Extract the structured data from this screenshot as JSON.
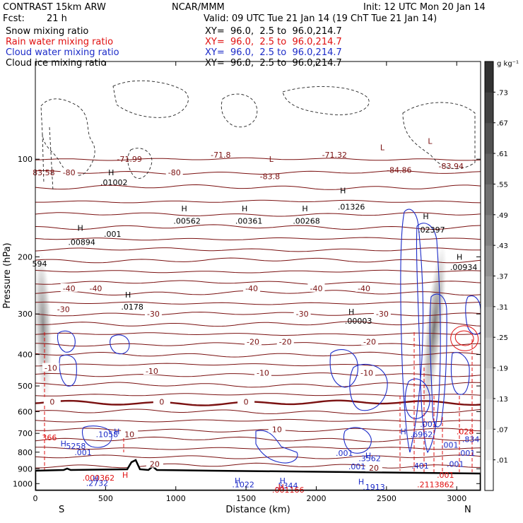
{
  "header": {
    "model": "CONTRAST 15km ARW",
    "org": "NCAR/MMM",
    "init": "Init: 12 UTC Mon 20 Jan 14",
    "fcst_label": "Fcst:",
    "fcst_value": "21 h",
    "valid": "Valid: 09 UTC Tue 21 Jan 14 (19 ChT Tue 21 Jan 14)",
    "fields": [
      {
        "name": "Snow mixing ratio",
        "xy": "XY=  96.0,  2.5 to  96.0,214.7",
        "color": "#000000"
      },
      {
        "name": "Rain water mixing ratio",
        "xy": "XY=  96.0,  2.5 to  96.0,214.7",
        "color": "#e01010"
      },
      {
        "name": "Cloud water mixing ratio",
        "xy": "XY=  96.0,  2.5 to  96.0,214.7",
        "color": "#1c2bc8"
      },
      {
        "name": "Cloud ice mixing ratio",
        "xy": "XY=  96.0,  2.5 to  96.0,214.7",
        "color": "#000000"
      }
    ]
  },
  "chart_data": {
    "type": "heatmap",
    "xlabel": "Distance (km)",
    "ylabel": "Pressure (hPa)",
    "xlim": [
      0,
      3170
    ],
    "ylim": [
      1050,
      50
    ],
    "y_scale": "log",
    "x_ticks": [
      0,
      500,
      1000,
      1500,
      2000,
      2500,
      3000
    ],
    "y_ticks": [
      100,
      200,
      300,
      400,
      500,
      600,
      700,
      800,
      900,
      1000
    ],
    "x_end_labels": {
      "left": "S",
      "right": "N"
    },
    "colorbar": {
      "unit": "g kg⁻¹",
      "ticks": [
        ".01",
        ".07",
        ".13",
        ".19",
        ".25",
        ".31",
        ".37",
        ".43",
        ".49",
        ".55",
        ".61",
        ".67",
        ".73"
      ]
    },
    "snow_fill": [
      {
        "x": 40,
        "top": 190,
        "bottom": 560,
        "peak": 0.45
      },
      {
        "x": 2870,
        "top": 180,
        "bottom": 600,
        "peak": 0.6
      }
    ],
    "temperature_labels": [
      {
        "x": 240,
        "p": 110,
        "text": "-80"
      },
      {
        "x": 990,
        "p": 110,
        "text": "-80"
      },
      {
        "x": 430,
        "p": 250,
        "text": "-40"
      },
      {
        "x": 240,
        "p": 250,
        "text": "-40"
      },
      {
        "x": 1540,
        "p": 250,
        "text": "-40"
      },
      {
        "x": 2000,
        "p": 250,
        "text": "-40"
      },
      {
        "x": 2340,
        "p": 250,
        "text": "-40"
      },
      {
        "x": 200,
        "p": 290,
        "text": "-30"
      },
      {
        "x": 840,
        "p": 300,
        "text": "-30"
      },
      {
        "x": 1900,
        "p": 300,
        "text": "-30"
      },
      {
        "x": 2470,
        "p": 300,
        "text": "-30"
      },
      {
        "x": 1550,
        "p": 365,
        "text": "-20"
      },
      {
        "x": 1780,
        "p": 365,
        "text": "-20"
      },
      {
        "x": 2380,
        "p": 365,
        "text": "-20"
      },
      {
        "x": 110,
        "p": 440,
        "text": "-10"
      },
      {
        "x": 830,
        "p": 450,
        "text": "-10"
      },
      {
        "x": 1620,
        "p": 455,
        "text": "-10"
      },
      {
        "x": 2360,
        "p": 455,
        "text": "-10"
      },
      {
        "x": 120,
        "p": 560,
        "text": "0"
      },
      {
        "x": 900,
        "p": 560,
        "text": "0"
      },
      {
        "x": 1500,
        "p": 560,
        "text": "0"
      },
      {
        "x": 670,
        "p": 705,
        "text": "10"
      },
      {
        "x": 1720,
        "p": 680,
        "text": "10"
      },
      {
        "x": 850,
        "p": 870,
        "text": "20"
      },
      {
        "x": 2410,
        "p": 895,
        "text": "20"
      }
    ],
    "extrema_labels": [
      {
        "x": 60,
        "p": 110,
        "text": "83.58",
        "color": "temp"
      },
      {
        "x": 670,
        "p": 100,
        "text": "-71.99",
        "color": "temp"
      },
      {
        "x": 1320,
        "p": 97,
        "text": "-71.8",
        "color": "temp"
      },
      {
        "x": 1670,
        "p": 113,
        "text": "-83.8",
        "color": "temp"
      },
      {
        "x": 2130,
        "p": 97,
        "text": "-71.32",
        "color": "temp"
      },
      {
        "x": 2590,
        "p": 108,
        "text": "-84.86",
        "color": "temp"
      },
      {
        "x": 2960,
        "p": 105,
        "text": "-83.94",
        "color": "temp"
      },
      {
        "x": 560,
        "p": 118,
        "text": ".01002",
        "color": "black"
      },
      {
        "x": 1080,
        "p": 155,
        "text": ".00562",
        "color": "black"
      },
      {
        "x": 1520,
        "p": 155,
        "text": ".00361",
        "color": "black"
      },
      {
        "x": 1930,
        "p": 155,
        "text": ".00268",
        "color": "black"
      },
      {
        "x": 2250,
        "p": 140,
        "text": ".01326",
        "color": "black"
      },
      {
        "x": 2820,
        "p": 165,
        "text": ".02397",
        "color": "black"
      },
      {
        "x": 330,
        "p": 180,
        "text": ".00894",
        "color": "black"
      },
      {
        "x": 550,
        "p": 170,
        "text": ".001",
        "color": "black"
      },
      {
        "x": 3050,
        "p": 215,
        "text": ".00934",
        "color": "black"
      },
      {
        "x": 30,
        "p": 210,
        "text": "594",
        "color": "black"
      },
      {
        "x": 690,
        "p": 285,
        "text": ".0178",
        "color": "black"
      },
      {
        "x": 2300,
        "p": 315,
        "text": ".00003",
        "color": "black"
      },
      {
        "x": 100,
        "p": 720,
        "text": "366",
        "color": "red"
      },
      {
        "x": 510,
        "p": 705,
        "text": ".1058",
        "color": "blue"
      },
      {
        "x": 280,
        "p": 765,
        "text": ".5258",
        "color": "blue"
      },
      {
        "x": 340,
        "p": 800,
        "text": ".001",
        "color": "blue"
      },
      {
        "x": 2750,
        "p": 705,
        "text": ".6962",
        "color": "blue"
      },
      {
        "x": 2380,
        "p": 835,
        "text": ".3562",
        "color": "blue"
      },
      {
        "x": 2200,
        "p": 805,
        "text": ".001",
        "color": "blue"
      },
      {
        "x": 2290,
        "p": 885,
        "text": ".001",
        "color": "blue"
      },
      {
        "x": 2800,
        "p": 655,
        "text": ".001",
        "color": "blue"
      },
      {
        "x": 2950,
        "p": 760,
        "text": ".001",
        "color": "blue"
      },
      {
        "x": 3070,
        "p": 805,
        "text": ".001",
        "color": "blue"
      },
      {
        "x": 2990,
        "p": 870,
        "text": ".001",
        "color": "blue"
      },
      {
        "x": 2740,
        "p": 880,
        "text": ".401",
        "color": "blue"
      },
      {
        "x": 450,
        "p": 960,
        "text": ".000362",
        "color": "red"
      },
      {
        "x": 3060,
        "p": 690,
        "text": ".028",
        "color": "red"
      },
      {
        "x": 2920,
        "p": 940,
        "text": ".001",
        "color": "red"
      },
      {
        "x": 440,
        "p": 995,
        "text": ".2732",
        "color": "blue"
      },
      {
        "x": 1480,
        "p": 1005,
        "text": ".1022",
        "color": "blue"
      },
      {
        "x": 1790,
        "p": 1015,
        "text": ".5344",
        "color": "blue"
      },
      {
        "x": 2410,
        "p": 1025,
        "text": ".1913",
        "color": "blue"
      },
      {
        "x": 1800,
        "p": 1045,
        "text": ".001166",
        "color": "red"
      },
      {
        "x": 2850,
        "p": 1005,
        "text": ".2113862",
        "color": "red"
      },
      {
        "x": 3100,
        "p": 730,
        "text": ".834",
        "color": "blue"
      }
    ],
    "high_markers": [
      {
        "x": 540,
        "p": 110,
        "color": "black"
      },
      {
        "x": 1060,
        "p": 142,
        "color": "black"
      },
      {
        "x": 1490,
        "p": 142,
        "color": "black"
      },
      {
        "x": 1920,
        "p": 142,
        "color": "black"
      },
      {
        "x": 2190,
        "p": 125,
        "color": "black"
      },
      {
        "x": 2780,
        "p": 150,
        "color": "black"
      },
      {
        "x": 3020,
        "p": 200,
        "color": "black"
      },
      {
        "x": 320,
        "p": 163,
        "color": "black"
      },
      {
        "x": 660,
        "p": 262,
        "color": "black"
      },
      {
        "x": 2250,
        "p": 295,
        "color": "black"
      },
      {
        "x": 580,
        "p": 690,
        "color": "blue"
      },
      {
        "x": 200,
        "p": 752,
        "color": "blue"
      },
      {
        "x": 2620,
        "p": 690,
        "color": "blue"
      },
      {
        "x": 2370,
        "p": 820,
        "color": "blue"
      },
      {
        "x": 430,
        "p": 965,
        "color": "blue"
      },
      {
        "x": 1440,
        "p": 978,
        "color": "blue"
      },
      {
        "x": 1760,
        "p": 978,
        "color": "blue"
      },
      {
        "x": 2320,
        "p": 985,
        "color": "blue"
      },
      {
        "x": 640,
        "p": 940,
        "color": "red"
      },
      {
        "x": 1750,
        "p": 1025,
        "color": "red"
      }
    ],
    "low_markers": [
      {
        "x": 1680,
        "p": 100
      },
      {
        "x": 2470,
        "p": 92
      },
      {
        "x": 2810,
        "p": 88
      }
    ]
  }
}
